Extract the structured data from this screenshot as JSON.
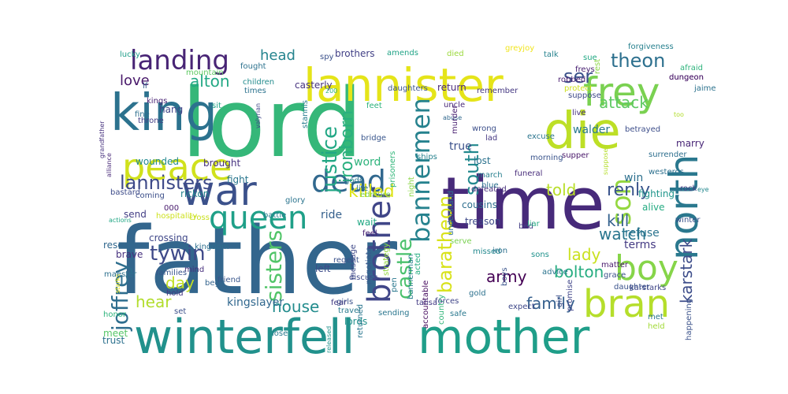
{
  "chart_data": {
    "type": "wordcloud",
    "words": [
      {
        "text": "father",
        "color": "#33668d"
      },
      {
        "text": "lord",
        "color": "#35b779"
      },
      {
        "text": "time",
        "color": "#472a7a"
      },
      {
        "text": "winterfell",
        "color": "#21918c"
      },
      {
        "text": "mother",
        "color": "#1f9e89"
      },
      {
        "text": "king",
        "color": "#2c728e"
      },
      {
        "text": "die",
        "color": "#bddf26"
      },
      {
        "text": "lannister",
        "color": "#e5e419"
      },
      {
        "text": "war",
        "color": "#3b518b"
      },
      {
        "text": "peace",
        "color": "#d0e11c"
      },
      {
        "text": "frey",
        "color": "#7ad151"
      },
      {
        "text": "north",
        "color": "#2a788e"
      },
      {
        "text": "boy",
        "color": "#86d549"
      },
      {
        "text": "bran",
        "color": "#b5de2b"
      },
      {
        "text": "dead",
        "color": "#31688e"
      },
      {
        "text": "brother",
        "color": "#404688"
      },
      {
        "text": "queen",
        "color": "#1fa088"
      },
      {
        "text": "landing",
        "color": "#482475"
      },
      {
        "text": "son",
        "color": "#95d840"
      },
      {
        "text": "bannermen",
        "color": "#26828e"
      },
      {
        "text": "lannisters",
        "color": "#3e4a89"
      },
      {
        "text": "tywin",
        "color": "#3e4989"
      },
      {
        "text": "joffrey",
        "color": "#2e6e8e"
      },
      {
        "text": "castle",
        "color": "#4ac16d"
      },
      {
        "text": "sisters",
        "color": "#52c569"
      },
      {
        "text": "baratheon",
        "color": "#d8e219"
      },
      {
        "text": "justice",
        "color": "#22a785"
      },
      {
        "text": "ironborn",
        "color": "#29af7f"
      },
      {
        "text": "south",
        "color": "#23898e"
      },
      {
        "text": "theon",
        "color": "#2d708e"
      },
      {
        "text": "ser",
        "color": "#3b528b"
      },
      {
        "text": "renly",
        "color": "#3a548c"
      },
      {
        "text": "attack",
        "color": "#5ec962"
      },
      {
        "text": "head",
        "color": "#25848e"
      },
      {
        "text": "love",
        "color": "#48186a"
      },
      {
        "text": "alton",
        "color": "#22a884"
      },
      {
        "text": "watch",
        "color": "#2a768e"
      },
      {
        "text": "kill",
        "color": "#34618d"
      },
      {
        "text": "killed",
        "color": "#dde318"
      },
      {
        "text": "told",
        "color": "#b8de29"
      },
      {
        "text": "army",
        "color": "#440154"
      },
      {
        "text": "bolton",
        "color": "#27ad81"
      },
      {
        "text": "karstark",
        "color": "#3d4d8a"
      },
      {
        "text": "lady",
        "color": "#cae11f"
      },
      {
        "text": "family",
        "color": "#355f8d"
      },
      {
        "text": "house",
        "color": "#228c8d"
      },
      {
        "text": "hear",
        "color": "#b2dd2d"
      },
      {
        "text": "day",
        "color": "#c2df23"
      },
      {
        "text": "win",
        "color": "#2d708e"
      },
      {
        "text": "word",
        "color": "#2eb37c"
      },
      {
        "text": "walder",
        "color": "#2a788e"
      },
      {
        "text": "true",
        "color": "#3b518b"
      },
      {
        "text": "ride",
        "color": "#35608d"
      },
      {
        "text": "kingslayer",
        "color": "#31688e"
      },
      {
        "text": "refuse",
        "color": "#2b748e"
      },
      {
        "text": "terms",
        "color": "#443a83"
      },
      {
        "text": "fighting",
        "color": "#1f958b"
      },
      {
        "text": "alive",
        "color": "#25ab82"
      },
      {
        "text": "wounded",
        "color": "#23898e"
      },
      {
        "text": "brought",
        "color": "#46327e"
      },
      {
        "text": "rickon",
        "color": "#25848e"
      },
      {
        "text": "send",
        "color": "#433e85"
      },
      {
        "text": "wait",
        "color": "#22a884"
      },
      {
        "text": "crossing",
        "color": "#3f4788"
      },
      {
        "text": "cousins",
        "color": "#2e6f8e"
      },
      {
        "text": "treason",
        "color": "#3e4a89"
      },
      {
        "text": "defeated",
        "color": "#472d7b"
      },
      {
        "text": "fight",
        "color": "#2a778e"
      },
      {
        "text": "children",
        "color": "#228b8d"
      },
      {
        "text": "hang",
        "color": "#414487"
      },
      {
        "text": "casterly",
        "color": "#46337f"
      },
      {
        "text": "brothers",
        "color": "#424086"
      },
      {
        "text": "return",
        "color": "#482878"
      },
      {
        "text": "remember",
        "color": "#453882"
      },
      {
        "text": "robbed",
        "color": "#481d6f"
      },
      {
        "text": "betrayed",
        "color": "#3d4e8a"
      },
      {
        "text": "marry",
        "color": "#482576"
      },
      {
        "text": "supper",
        "color": "#481769"
      },
      {
        "text": "lost",
        "color": "#2c728e"
      },
      {
        "text": "march",
        "color": "#277f8e"
      },
      {
        "text": "morning",
        "color": "#3a548c"
      },
      {
        "text": "excuse",
        "color": "#2b758e"
      },
      {
        "text": "funeral",
        "color": "#472c7a"
      },
      {
        "text": "wrong",
        "color": "#3c4f8a"
      },
      {
        "text": "feet",
        "color": "#2db27d"
      },
      {
        "text": "bridge",
        "color": "#39568c"
      },
      {
        "text": "feel",
        "color": "#482173"
      },
      {
        "text": "bed",
        "color": "#433e85"
      },
      {
        "text": "lords",
        "color": "#21918c"
      },
      {
        "text": "travel",
        "color": "#297a8e"
      },
      {
        "text": "girls",
        "color": "#3b528b"
      },
      {
        "text": "trust",
        "color": "#2c718e"
      },
      {
        "text": "meet",
        "color": "#56c667"
      },
      {
        "text": "lose",
        "color": "#297b8e"
      },
      {
        "text": "honor",
        "color": "#2eb37c"
      },
      {
        "text": "set",
        "color": "#3c508b"
      },
      {
        "text": "hold",
        "color": "#453781"
      },
      {
        "text": "mind",
        "color": "#472e7c"
      },
      {
        "text": "brave",
        "color": "#46307e"
      },
      {
        "text": "rescue",
        "color": "#31688e"
      },
      {
        "text": "families",
        "color": "#39558c"
      },
      {
        "text": "kingdom",
        "color": "#2d708e"
      },
      {
        "text": "beg",
        "color": "#33638d"
      },
      {
        "text": "friend",
        "color": "#39568c"
      },
      {
        "text": "regent",
        "color": "#3b528b"
      },
      {
        "text": "message",
        "color": "#3f4889"
      },
      {
        "text": "negotiate",
        "color": "#38598c"
      },
      {
        "text": "strategy",
        "color": "#93d741"
      },
      {
        "text": "left",
        "color": "#3e4c8a"
      },
      {
        "text": "fear",
        "color": "#433d84"
      },
      {
        "text": "released",
        "color": "#20928c"
      },
      {
        "text": "returned",
        "color": "#2a768e"
      },
      {
        "text": "bannerman",
        "color": "#277e8e"
      },
      {
        "text": "acted",
        "color": "#25ac82"
      },
      {
        "text": "pen",
        "color": "#2a788e"
      },
      {
        "text": "accountable",
        "color": "#460b5e"
      },
      {
        "text": "sending",
        "color": "#2a768e"
      },
      {
        "text": "talisa",
        "color": "#443b84"
      },
      {
        "text": "country",
        "color": "#32b67a"
      },
      {
        "text": "forces",
        "color": "#404588"
      },
      {
        "text": "safe",
        "color": "#2a788e"
      },
      {
        "text": "gold",
        "color": "#2d718e"
      },
      {
        "text": "expect",
        "color": "#3f4889"
      },
      {
        "text": "boys",
        "color": "#3a548c"
      },
      {
        "text": "missed",
        "color": "#23898e"
      },
      {
        "text": "iron",
        "color": "#2d708e"
      },
      {
        "text": "sons",
        "color": "#20928c"
      },
      {
        "text": "advice",
        "color": "#2b748e"
      },
      {
        "text": "grace",
        "color": "#3b518b"
      },
      {
        "text": "karstarks",
        "color": "#404688"
      },
      {
        "text": "girl",
        "color": "#3c4f8a"
      },
      {
        "text": "promise",
        "color": "#404588"
      },
      {
        "text": "met",
        "color": "#2a778e"
      },
      {
        "text": "held",
        "color": "#a2da37"
      },
      {
        "text": "happening",
        "color": "#3b528b"
      },
      {
        "text": "daughter",
        "color": "#3a538b"
      },
      {
        "text": "matter",
        "color": "#481b6d"
      },
      {
        "text": "liar",
        "color": "#25ab82"
      },
      {
        "text": "winter",
        "color": "#3a548c"
      },
      {
        "text": "rock",
        "color": "#433e85"
      },
      {
        "text": "eye",
        "color": "#23888e"
      },
      {
        "text": "westeros",
        "color": "#2d708e"
      },
      {
        "text": "surrender",
        "color": "#2e6f8e"
      },
      {
        "text": "jaime",
        "color": "#2c738e"
      },
      {
        "text": "afraid",
        "color": "#2eb37c"
      },
      {
        "text": "dungeon",
        "color": "#481668"
      },
      {
        "text": "forgiveness",
        "color": "#27808e"
      },
      {
        "text": "freys",
        "color": "#482071"
      },
      {
        "text": "talk",
        "color": "#26828e"
      },
      {
        "text": "sue",
        "color": "#22a884"
      },
      {
        "text": "greyjoy",
        "color": "#f1e51d"
      },
      {
        "text": "died",
        "color": "#9bd93c"
      },
      {
        "text": "amends",
        "color": "#20a386"
      },
      {
        "text": "spy",
        "color": "#3b518b"
      },
      {
        "text": "200",
        "color": "#31b57b"
      },
      {
        "text": "mountain",
        "color": "#5ec962"
      },
      {
        "text": "fought",
        "color": "#2c728e"
      },
      {
        "text": "lucky",
        "color": "#1f9e89"
      },
      {
        "text": "lf",
        "color": "#365d8d"
      },
      {
        "text": "kings",
        "color": "#482173"
      },
      {
        "text": "fine",
        "color": "#2e6f8e"
      },
      {
        "text": "throne",
        "color": "#433e85"
      },
      {
        "text": "grandfather",
        "color": "#46327e"
      },
      {
        "text": "alliance",
        "color": "#482878"
      },
      {
        "text": "times",
        "color": "#2c738e"
      },
      {
        "text": "sit",
        "color": "#20a386"
      },
      {
        "text": "valyrian",
        "color": "#3f4788"
      },
      {
        "text": "stannis",
        "color": "#287c8e"
      },
      {
        "text": "daughters",
        "color": "#3a548c"
      },
      {
        "text": "abuse",
        "color": "#31688e"
      },
      {
        "text": "murder",
        "color": "#481f70"
      },
      {
        "text": "lad",
        "color": "#453882"
      },
      {
        "text": "ships",
        "color": "#26828e"
      },
      {
        "text": "gods",
        "color": "#2a788e"
      },
      {
        "text": "uncle",
        "color": "#482878"
      },
      {
        "text": "dungeon",
        "color": "#481668"
      },
      {
        "text": "serve",
        "color": "#7ad151"
      },
      {
        "text": "life",
        "color": "#2c738e"
      },
      {
        "text": "glory",
        "color": "#2b748e"
      },
      {
        "text": "battle",
        "color": "#287d8e"
      },
      {
        "text": "coming",
        "color": "#3c4f8a"
      },
      {
        "text": "hospitality",
        "color": "#cde11d"
      },
      {
        "text": "actions",
        "color": "#22a785"
      },
      {
        "text": "cross",
        "color": "#cae11f"
      },
      {
        "text": "bastard",
        "color": "#3e4c8a"
      },
      {
        "text": "000",
        "color": "#481b6d"
      },
      {
        "text": "blue",
        "color": "#2d708e"
      },
      {
        "text": "edmure",
        "color": "#7ad151"
      },
      {
        "text": "night",
        "color": "#8bd646"
      },
      {
        "text": "prisoners",
        "color": "#32b67a"
      },
      {
        "text": "understand",
        "color": "#2d708e"
      },
      {
        "text": "discuss",
        "color": "#3e4a89"
      },
      {
        "text": "starks",
        "color": "#e7e419"
      },
      {
        "text": "maester",
        "color": "#2d718e"
      },
      {
        "text": "supposed",
        "color": "#b5de2b"
      },
      {
        "text": "live",
        "color": "#46307e"
      },
      {
        "text": "protect",
        "color": "#cde11d"
      },
      {
        "text": "suppose",
        "color": "#3e4989"
      },
      {
        "text": "rest",
        "color": "#8bd646"
      },
      {
        "text": "too",
        "color": "#b2dd2d"
      }
    ]
  }
}
